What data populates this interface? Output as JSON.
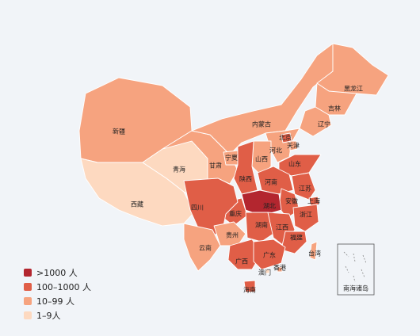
{
  "legend": [
    {
      "label": ">1000 人",
      "color": "#b3262f"
    },
    {
      "label": "100–1000 人",
      "color": "#e05e47"
    },
    {
      "label": "10–99 人",
      "color": "#f6a37f"
    },
    {
      "label": "1–9人",
      "color": "#fdd9c0"
    }
  ],
  "provinces": [
    {
      "name": "黑龙江",
      "level": 2
    },
    {
      "name": "吉林",
      "level": 2
    },
    {
      "name": "辽宁",
      "level": 2
    },
    {
      "name": "内蒙古",
      "level": 2
    },
    {
      "name": "新疆",
      "level": 2
    },
    {
      "name": "青海",
      "level": 3
    },
    {
      "name": "西藏",
      "level": 3
    },
    {
      "name": "甘肃",
      "level": 2
    },
    {
      "name": "宁夏",
      "level": 2
    },
    {
      "name": "陕西",
      "level": 1
    },
    {
      "name": "山西",
      "level": 2
    },
    {
      "name": "河北",
      "level": 2
    },
    {
      "name": "北京",
      "level": 1
    },
    {
      "name": "天津",
      "level": 2
    },
    {
      "name": "山东",
      "level": 1
    },
    {
      "name": "河南",
      "level": 1
    },
    {
      "name": "江苏",
      "level": 1
    },
    {
      "name": "上海",
      "level": 1
    },
    {
      "name": "安徽",
      "level": 1
    },
    {
      "name": "湖北",
      "level": 0
    },
    {
      "name": "四川",
      "level": 1
    },
    {
      "name": "重庆",
      "level": 1
    },
    {
      "name": "贵州",
      "level": 2
    },
    {
      "name": "云南",
      "level": 2
    },
    {
      "name": "湖南",
      "level": 1
    },
    {
      "name": "江西",
      "level": 1
    },
    {
      "name": "浙江",
      "level": 1
    },
    {
      "name": "福建",
      "level": 1
    },
    {
      "name": "广西",
      "level": 1
    },
    {
      "name": "广东",
      "level": 1
    },
    {
      "name": "台湾",
      "level": 2
    },
    {
      "name": "香港",
      "level": 2
    },
    {
      "name": "澳门",
      "level": 3
    },
    {
      "name": "海南",
      "level": 1
    }
  ],
  "inset": {
    "label": "南海诸岛"
  }
}
